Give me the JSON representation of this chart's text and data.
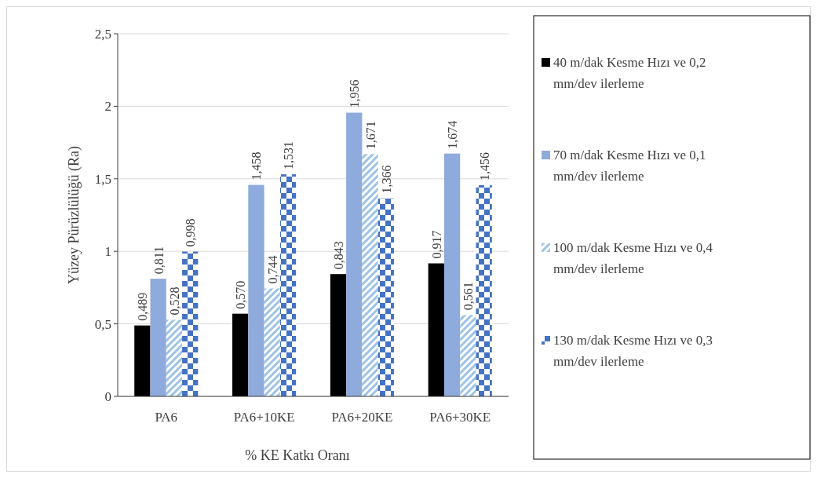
{
  "chart_data": {
    "type": "bar",
    "xlabel": "% KE Katkı Oranı",
    "ylabel": "Yüzey Pürüzlülüğü (Ra)",
    "categories": [
      "PA6",
      "PA6+10KE",
      "PA6+20KE",
      "PA6+30KE"
    ],
    "series": [
      {
        "name": "40 m/dak Kesme Hızı ve  0,2 mm/dev ilerleme",
        "color": "#000000",
        "values": [
          0.489,
          0.57,
          0.843,
          0.917
        ],
        "value_labels": [
          "0,489",
          "0,570",
          "0,843",
          "0,917"
        ]
      },
      {
        "name": "70 m/dak Kesme Hızı ve  0,1 mm/dev ilerleme",
        "color": "#8faadc",
        "values": [
          0.811,
          1.458,
          1.956,
          1.674
        ],
        "value_labels": [
          "0,811",
          "1,458",
          "1,956",
          "1,674"
        ]
      },
      {
        "name": "100 m/dak Kesme Hızı ve  0,4 mm/dev ilerleme",
        "color": "#9dc3e6",
        "values": [
          0.528,
          0.744,
          1.671,
          0.561
        ],
        "value_labels": [
          "0,528",
          "0,744",
          "1,671",
          "0,561"
        ]
      },
      {
        "name": "130 m/dak Kesme Hızı ve  0,3 mm/dev ilerleme",
        "color": "#4472c4",
        "values": [
          0.998,
          1.531,
          1.366,
          1.456
        ],
        "value_labels": [
          "0,998",
          "1,531",
          "1,366",
          "1,456"
        ]
      }
    ],
    "ylim": [
      0,
      2.5
    ],
    "yticks": [
      0,
      {
        "value": 0.5,
        "label": "0,5"
      },
      1,
      {
        "value": 1.5,
        "label": "1,5"
      },
      2,
      {
        "value": 2.5,
        "label": "2,5"
      }
    ],
    "grid": "y",
    "legend": "right"
  }
}
